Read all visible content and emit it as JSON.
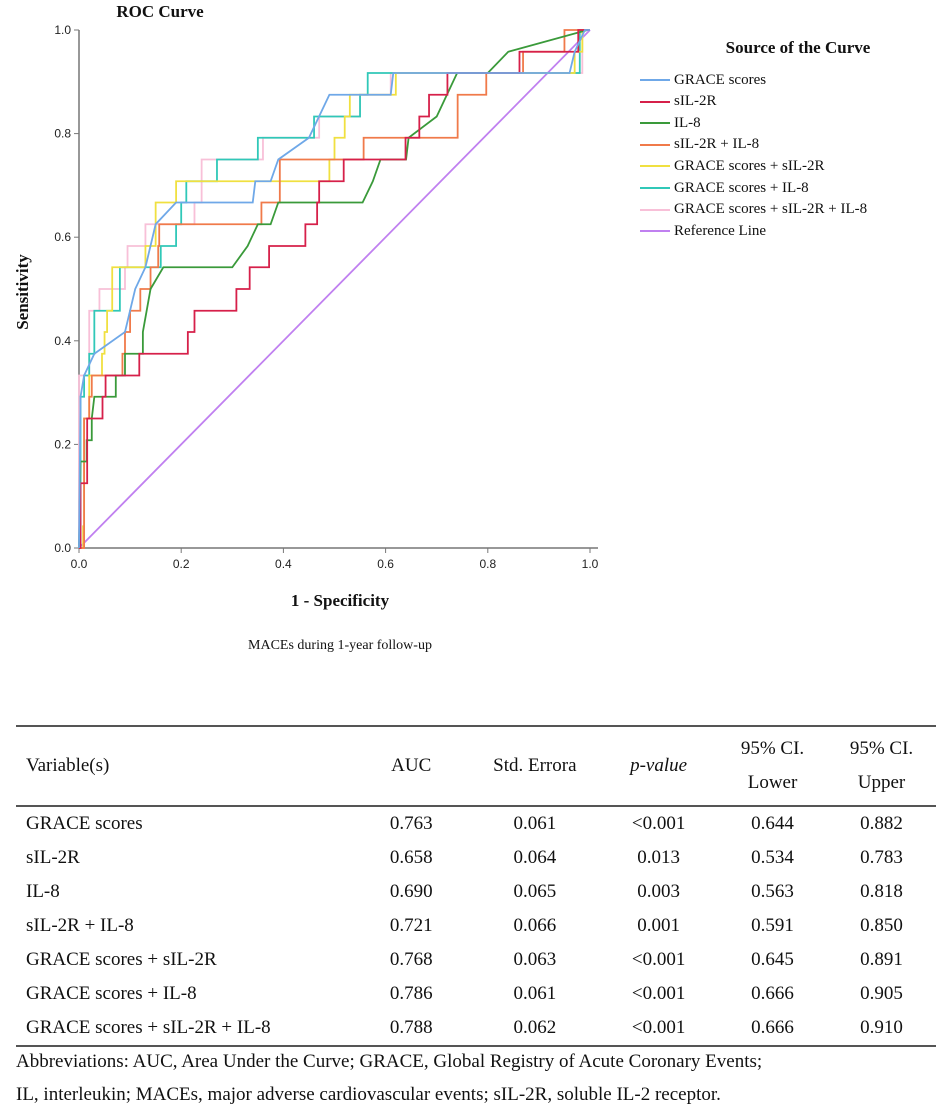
{
  "chart_data": [
    {
      "type": "line",
      "title": "ROC Curve",
      "xlabel": "1 - Specificity",
      "ylabel": "Sensitivity",
      "caption": "MACEs during 1-year follow-up",
      "xlim": [
        0,
        1
      ],
      "ylim": [
        0,
        1
      ],
      "xticks": [
        "0.0",
        "0.2",
        "0.4",
        "0.6",
        "0.8",
        "1.0"
      ],
      "yticks": [
        "0.0",
        "0.2",
        "0.4",
        "0.6",
        "0.8",
        "1.0"
      ],
      "legend_title": "Source of the Curve",
      "legend_position": "right",
      "series": [
        {
          "name": "GRACE scores",
          "color": "#6fa8e8",
          "points": [
            [
              0,
              0
            ],
            [
              0.003,
              0.292
            ],
            [
              0.01,
              0.333
            ],
            [
              0.03,
              0.375
            ],
            [
              0.09,
              0.417
            ],
            [
              0.11,
              0.5
            ],
            [
              0.13,
              0.542
            ],
            [
              0.15,
              0.625
            ],
            [
              0.19,
              0.667
            ],
            [
              0.34,
              0.667
            ],
            [
              0.345,
              0.708
            ],
            [
              0.375,
              0.708
            ],
            [
              0.39,
              0.75
            ],
            [
              0.45,
              0.792
            ],
            [
              0.49,
              0.875
            ],
            [
              0.61,
              0.875
            ],
            [
              0.615,
              0.917
            ],
            [
              0.96,
              0.917
            ],
            [
              0.97,
              0.958
            ],
            [
              0.99,
              1
            ],
            [
              1,
              1
            ]
          ]
        },
        {
          "name": "sIL-2R",
          "color": "#d6204a",
          "steps": [
            [
              0,
              0
            ],
            [
              0.003,
              0.125
            ],
            [
              0.016,
              0.25
            ],
            [
              0.046,
              0.292
            ],
            [
              0.052,
              0.333
            ],
            [
              0.118,
              0.375
            ],
            [
              0.213,
              0.417
            ],
            [
              0.226,
              0.458
            ],
            [
              0.308,
              0.5
            ],
            [
              0.334,
              0.542
            ],
            [
              0.372,
              0.583
            ],
            [
              0.443,
              0.625
            ],
            [
              0.466,
              0.667
            ],
            [
              0.47,
              0.708
            ],
            [
              0.518,
              0.75
            ],
            [
              0.639,
              0.792
            ],
            [
              0.666,
              0.833
            ],
            [
              0.685,
              0.875
            ],
            [
              0.721,
              0.917
            ],
            [
              0.862,
              0.958
            ],
            [
              0.977,
              1
            ],
            [
              1,
              1
            ]
          ]
        },
        {
          "name": "IL-8",
          "color": "#3a9a3a",
          "points": [
            [
              0,
              0
            ],
            [
              0.003,
              0.167
            ],
            [
              0.015,
              0.167
            ],
            [
              0.015,
              0.208
            ],
            [
              0.025,
              0.208
            ],
            [
              0.025,
              0.25
            ],
            [
              0.03,
              0.292
            ],
            [
              0.072,
              0.292
            ],
            [
              0.072,
              0.333
            ],
            [
              0.09,
              0.333
            ],
            [
              0.09,
              0.375
            ],
            [
              0.125,
              0.375
            ],
            [
              0.125,
              0.417
            ],
            [
              0.14,
              0.5
            ],
            [
              0.165,
              0.542
            ],
            [
              0.3,
              0.542
            ],
            [
              0.33,
              0.583
            ],
            [
              0.35,
              0.625
            ],
            [
              0.375,
              0.625
            ],
            [
              0.39,
              0.667
            ],
            [
              0.555,
              0.667
            ],
            [
              0.575,
              0.708
            ],
            [
              0.59,
              0.75
            ],
            [
              0.64,
              0.75
            ],
            [
              0.645,
              0.792
            ],
            [
              0.7,
              0.833
            ],
            [
              0.72,
              0.875
            ],
            [
              0.74,
              0.917
            ],
            [
              0.8,
              0.917
            ],
            [
              0.84,
              0.958
            ],
            [
              0.995,
              1
            ],
            [
              1,
              1
            ]
          ]
        },
        {
          "name": "sIL-2R + IL-8",
          "color": "#f07a4a",
          "steps": [
            [
              0,
              0
            ],
            [
              0.01,
              0.25
            ],
            [
              0.02,
              0.292
            ],
            [
              0.025,
              0.333
            ],
            [
              0.085,
              0.375
            ],
            [
              0.09,
              0.417
            ],
            [
              0.1,
              0.458
            ],
            [
              0.12,
              0.5
            ],
            [
              0.14,
              0.542
            ],
            [
              0.155,
              0.583
            ],
            [
              0.157,
              0.625
            ],
            [
              0.357,
              0.667
            ],
            [
              0.393,
              0.75
            ],
            [
              0.557,
              0.792
            ],
            [
              0.741,
              0.875
            ],
            [
              0.797,
              0.917
            ],
            [
              0.869,
              0.958
            ],
            [
              0.95,
              1
            ],
            [
              1,
              1
            ]
          ]
        },
        {
          "name": "GRACE scores + sIL-2R",
          "color": "#f0e040",
          "steps": [
            [
              0,
              0
            ],
            [
              0.008,
              0.042
            ],
            [
              0.01,
              0.25
            ],
            [
              0.02,
              0.333
            ],
            [
              0.045,
              0.375
            ],
            [
              0.05,
              0.417
            ],
            [
              0.055,
              0.458
            ],
            [
              0.065,
              0.542
            ],
            [
              0.13,
              0.583
            ],
            [
              0.15,
              0.667
            ],
            [
              0.19,
              0.708
            ],
            [
              0.49,
              0.75
            ],
            [
              0.5,
              0.792
            ],
            [
              0.52,
              0.833
            ],
            [
              0.53,
              0.875
            ],
            [
              0.62,
              0.917
            ],
            [
              0.97,
              0.958
            ],
            [
              0.985,
              1
            ],
            [
              1,
              1
            ]
          ]
        },
        {
          "name": "GRACE scores + IL-8",
          "color": "#30c8b8",
          "steps": [
            [
              0,
              0
            ],
            [
              0.003,
              0.292
            ],
            [
              0.01,
              0.333
            ],
            [
              0.02,
              0.375
            ],
            [
              0.03,
              0.458
            ],
            [
              0.08,
              0.542
            ],
            [
              0.16,
              0.583
            ],
            [
              0.19,
              0.625
            ],
            [
              0.2,
              0.667
            ],
            [
              0.21,
              0.708
            ],
            [
              0.27,
              0.75
            ],
            [
              0.35,
              0.792
            ],
            [
              0.46,
              0.833
            ],
            [
              0.55,
              0.875
            ],
            [
              0.565,
              0.917
            ],
            [
              0.98,
              1
            ],
            [
              1,
              1
            ]
          ]
        },
        {
          "name": "GRACE scores + sIL-2R + IL-8",
          "color": "#f8c0d8",
          "steps": [
            [
              0,
              0
            ],
            [
              0.0,
              0.333
            ],
            [
              0.02,
              0.458
            ],
            [
              0.04,
              0.5
            ],
            [
              0.09,
              0.542
            ],
            [
              0.095,
              0.583
            ],
            [
              0.13,
              0.625
            ],
            [
              0.226,
              0.667
            ],
            [
              0.24,
              0.75
            ],
            [
              0.36,
              0.792
            ],
            [
              0.47,
              0.833
            ],
            [
              0.55,
              0.875
            ],
            [
              0.61,
              0.917
            ],
            [
              0.985,
              1
            ],
            [
              1,
              1
            ]
          ]
        },
        {
          "name": "Reference Line",
          "color": "#c080f0",
          "points": [
            [
              0,
              0
            ],
            [
              1,
              1
            ]
          ]
        }
      ]
    }
  ],
  "table": {
    "headers": {
      "variable": "Variable(s)",
      "auc": "AUC",
      "se": "Std. Errora",
      "p": "p-value",
      "lower1": "95% CI.",
      "lower2": "Lower",
      "upper1": "95% CI.",
      "upper2": "Upper"
    },
    "rows": [
      [
        "GRACE scores",
        "0.763",
        "0.061",
        "<0.001",
        "0.644",
        "0.882"
      ],
      [
        "sIL-2R",
        "0.658",
        "0.064",
        "0.013",
        "0.534",
        "0.783"
      ],
      [
        "IL-8",
        "0.690",
        "0.065",
        "0.003",
        "0.563",
        "0.818"
      ],
      [
        "sIL-2R + IL-8",
        "0.721",
        "0.066",
        "0.001",
        "0.591",
        "0.850"
      ],
      [
        "GRACE scores + sIL-2R",
        "0.768",
        "0.063",
        "<0.001",
        "0.645",
        "0.891"
      ],
      [
        "GRACE scores + IL-8",
        "0.786",
        "0.061",
        "<0.001",
        "0.666",
        "0.905"
      ],
      [
        "GRACE scores + sIL-2R + IL-8",
        "0.788",
        "0.062",
        "<0.001",
        "0.666",
        "0.910"
      ]
    ]
  },
  "footnote": {
    "line1": "Abbreviations: AUC, Area Under the Curve; GRACE, Global Registry of Acute Coronary Events;",
    "line2": "IL, interleukin; MACEs, major adverse cardiovascular events; sIL-2R, soluble IL-2 receptor."
  }
}
